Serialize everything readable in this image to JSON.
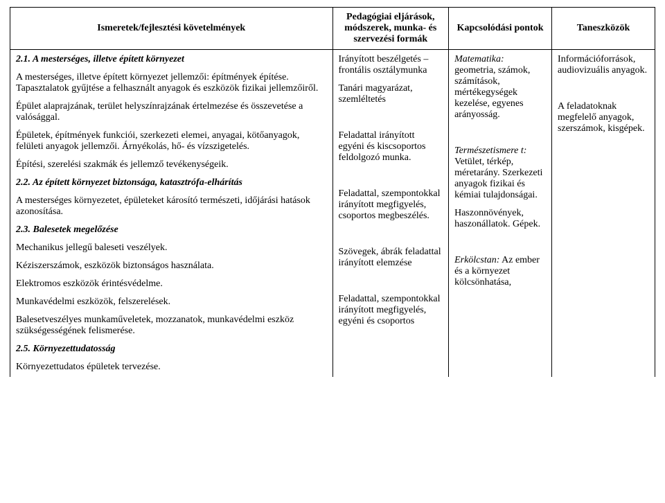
{
  "header": {
    "col1": "Ismeretek/fejlesztési követelmények",
    "col2": "Pedagógiai eljárások, módszerek, munka- és szervezési formák",
    "col3": "Kapcsolódási pontok",
    "col4": "Taneszközök"
  },
  "col1": {
    "h21": "2.1. A mesterséges, illetve épített környezet",
    "p1": "A mesterséges, illetve épített környezet jellemzői: építmények építése. Tapasztalatok gyűjtése a felhasznált anyagok és eszközök fizikai jellemzőiről.",
    "p2": "Épület alaprajzának, terület helyszínrajzának értelmezése és összevetése a valósággal.",
    "p3": "Épületek, építmények funkciói, szerkezeti elemei, anyagai, kötőanyagok, felületi anyagok jellemzői. Árnyékolás, hő- és vízszigetelés.",
    "p4": "Építési, szerelési szakmák és jellemző tevékenységeik.",
    "h22": "2.2. Az épített környezet biztonsága, katasztrófa-elhárítás",
    "p5": "A mesterséges környezetet, épületeket károsító természeti, időjárási hatások azonosítása.",
    "h23": "2.3. Balesetek megelőzése",
    "p6": "Mechanikus jellegű baleseti veszélyek.",
    "p7": "Kéziszerszámok, eszközök biztonságos használata.",
    "p8": "Elektromos eszközök érintésvédelme.",
    "p9": "Munkavédelmi eszközök, felszerelések.",
    "p10": "Balesetveszélyes munkaműveletek, mozzanatok, munkavédelmi eszköz szükségességének felismerése.",
    "h25": "2.5. Környezettudatosság",
    "p11": "Környezettudatos épületek tervezése."
  },
  "col2": {
    "p1": "Irányított beszélgetés – frontális osztálymunka",
    "p2": "Tanári magyarázat, szemléltetés",
    "p3": "Feladattal irányított egyéni és kiscsoportos feldolgozó munka.",
    "p4": "Feladattal, szempontokkal irányított megfigyelés, csoportos megbeszélés.",
    "p5": "Szövegek, ábrák feladattal irányított elemzése",
    "p6": "Feladattal, szempontokkal irányított megfigyelés, egyéni és csoportos"
  },
  "col3": {
    "mat_label": "Matematika:",
    "mat_body": " geometria, számok, számítások, mértékegységek kezelése, egyenes arányosság.",
    "term_label": "Természetismere t:",
    "term_body": " Vetület, térkép, méretarány. Szerkezeti anyagok fizikai és kémiai tulajdonságai.",
    "hasz": "Haszonnövények, haszonállatok. Gépek.",
    "erk_label": "Erkölcstan:",
    "erk_body": " Az ember és a környezet kölcsönhatása,"
  },
  "col4": {
    "p1": "Információforrások, audiovizuális anyagok.",
    "p2": "A feladatoknak megfelelő anyagok, szerszámok, kisgépek."
  }
}
